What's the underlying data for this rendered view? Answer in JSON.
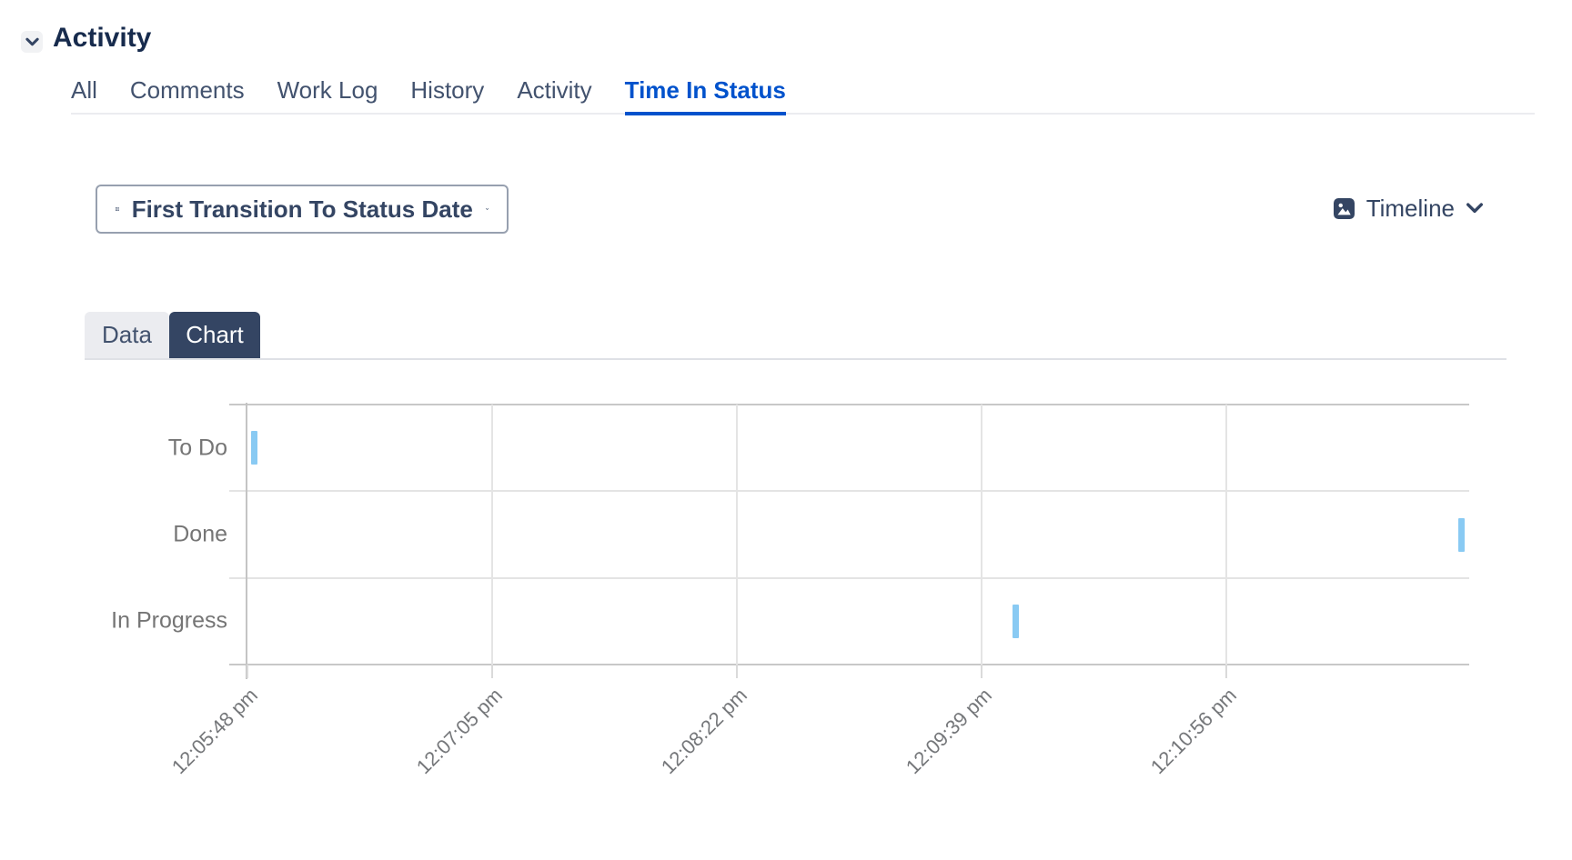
{
  "header": {
    "title": "Activity",
    "collapse_icon": "chevron-down-icon"
  },
  "activity_tabs": {
    "items": [
      {
        "label": "All",
        "active": false
      },
      {
        "label": "Comments",
        "active": false
      },
      {
        "label": "Work Log",
        "active": false
      },
      {
        "label": "History",
        "active": false
      },
      {
        "label": "Activity",
        "active": false
      },
      {
        "label": "Time In Status",
        "active": true
      }
    ],
    "active_color": "#0052CC"
  },
  "toolbar": {
    "field_selector": {
      "icon": "grid-icon",
      "label": "First Transition To Status Date",
      "trailing_icon": "chevron-down-icon"
    },
    "view_selector": {
      "icon": "image-icon",
      "label": "Timeline",
      "trailing_icon": "chevron-down-icon"
    }
  },
  "view_toggle": {
    "data_label": "Data",
    "chart_label": "Chart",
    "active": "Chart",
    "active_bg": "#344563",
    "inactive_bg": "#EBECF0"
  },
  "chart_data": {
    "type": "scatter",
    "subtype": "time-in-status-timeline",
    "orientation": "categories-on-y-time-on-x",
    "categories": [
      "To Do",
      "Done",
      "In Progress"
    ],
    "x_ticks": [
      {
        "label": "12:05:48 pm",
        "x_pct": 0
      },
      {
        "label": "12:07:05 pm",
        "x_pct": 20.03
      },
      {
        "label": "12:08:22 pm",
        "x_pct": 40.06
      },
      {
        "label": "12:09:39 pm",
        "x_pct": 60.09
      },
      {
        "label": "12:10:56 pm",
        "x_pct": 80.12
      }
    ],
    "x_tick_interval_seconds": 77,
    "points": [
      {
        "category": "To Do",
        "time_estimate": "12:05:50 pm",
        "x_pct": 0.56
      },
      {
        "category": "In Progress",
        "time_estimate": "12:09:50 pm",
        "x_pct": 62.88
      },
      {
        "category": "Done",
        "time_estimate": "12:12:10 pm",
        "x_pct": 99.37
      }
    ],
    "marker_color": "#89CAF3",
    "grid": true,
    "colors": {
      "grid_light": "#E4E4E4",
      "grid_strong": "#C8C8C8",
      "axis": "#C4C4C4",
      "tick_below": "#DADADA",
      "label_gray": "#757575"
    },
    "title": "",
    "xlabel": "",
    "ylabel": "",
    "legend": null
  }
}
